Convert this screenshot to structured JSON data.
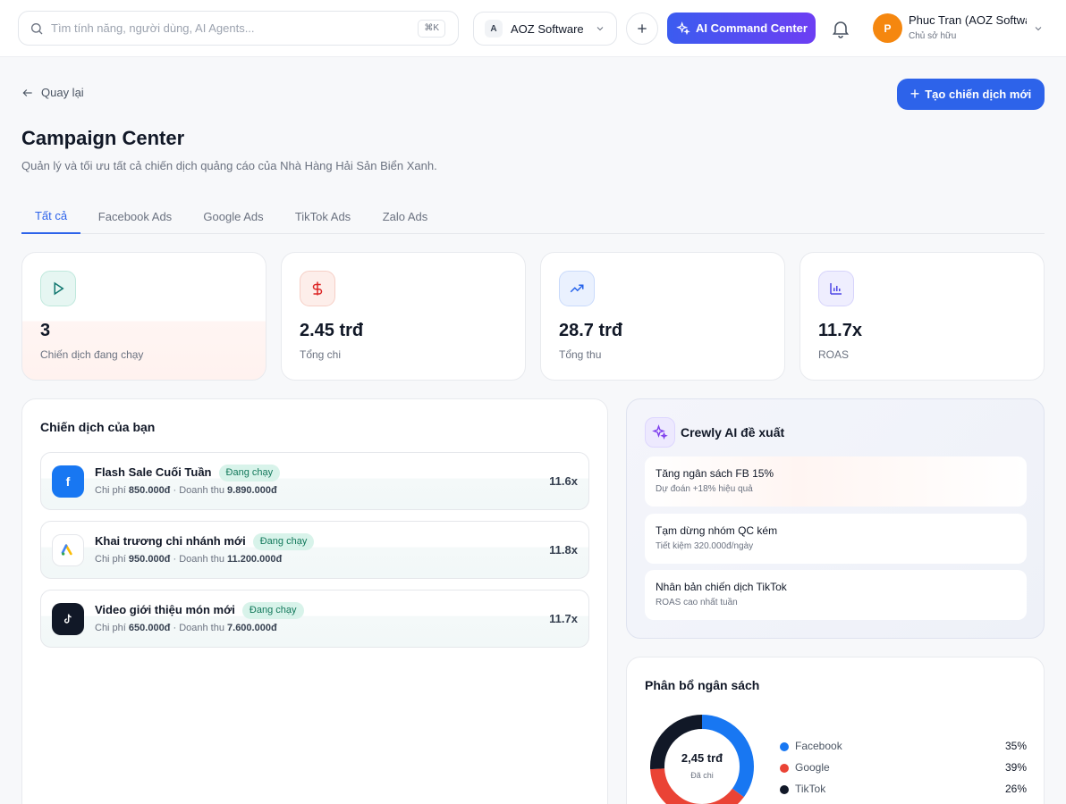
{
  "topbar": {
    "search_placeholder": "Tìm tính năng, người dùng, AI Agents...",
    "shortcut": "⌘K",
    "workspace_badge": "A",
    "workspace_name": "AOZ Software",
    "ai_button": "AI Command Center",
    "avatar_initial": "P",
    "user_name": "Phuc Tran (AOZ Software)",
    "user_role": "Chủ sở hữu"
  },
  "header": {
    "back": "Quay lại",
    "create_button": "Tạo chiến dịch mới",
    "title": "Campaign Center",
    "subtitle": "Quản lý và tối ưu tất cả chiến dịch quảng cáo của Nhà Hàng Hải Sản Biển Xanh."
  },
  "tabs": [
    {
      "label": "Tất cả"
    },
    {
      "label": "Facebook Ads"
    },
    {
      "label": "Google Ads"
    },
    {
      "label": "TikTok Ads"
    },
    {
      "label": "Zalo Ads"
    }
  ],
  "stats": [
    {
      "value": "3",
      "label": "Chiến dịch đang chạy",
      "icon": "play-icon",
      "color": "#0f766e"
    },
    {
      "value": "2.45 trđ",
      "label": "Tổng chi",
      "icon": "dollar-icon",
      "color": "#dc2626"
    },
    {
      "value": "28.7 trđ",
      "label": "Tổng thu",
      "icon": "trending-up-icon",
      "color": "#2563eb"
    },
    {
      "value": "11.7x",
      "label": "ROAS",
      "icon": "bar-chart-icon",
      "color": "#4f46e5"
    }
  ],
  "campaigns": {
    "title": "Chiến dịch của bạn",
    "cost_label": "Chi phí",
    "revenue_label": "Doanh thu",
    "items": [
      {
        "name": "Flash Sale Cuối Tuần",
        "status": "Đang chạy",
        "cost": "850.000đ",
        "revenue": "9.890.000đ",
        "roas": "11.6x",
        "platform": "facebook-logo-icon"
      },
      {
        "name": "Khai trương chi nhánh mới",
        "status": "Đang chạy",
        "cost": "950.000đ",
        "revenue": "11.200.000đ",
        "roas": "11.8x",
        "platform": "google-ads-logo-icon"
      },
      {
        "name": "Video giới thiệu món mới",
        "status": "Đang chạy",
        "cost": "650.000đ",
        "revenue": "7.600.000đ",
        "roas": "11.7x",
        "platform": "tiktok-logo-icon"
      }
    ]
  },
  "ai": {
    "title": "Crewly AI đề xuất",
    "suggestions": [
      {
        "title": "Tăng ngân sách FB 15%",
        "desc": "Dự đoán +18% hiệu quả"
      },
      {
        "title": "Tạm dừng nhóm QC kém",
        "desc": "Tiết kiệm 320.000đ/ngày"
      },
      {
        "title": "Nhân bản chiến dịch TikTok",
        "desc": "ROAS cao nhất tuần"
      }
    ]
  },
  "budget": {
    "title": "Phân bổ ngân sách",
    "center_value": "2,45 trđ",
    "center_label": "Đã chi",
    "items": [
      {
        "name": "Facebook",
        "pct": "35%",
        "value": 35,
        "color": "#1877f2"
      },
      {
        "name": "Google",
        "pct": "39%",
        "value": 39,
        "color": "#ea4335"
      },
      {
        "name": "TikTok",
        "pct": "26%",
        "value": 26,
        "color": "#111827"
      }
    ]
  },
  "colors": {
    "primary": "#2d63ea",
    "success_bg": "#d8f3ea",
    "success_text": "#13795b"
  }
}
